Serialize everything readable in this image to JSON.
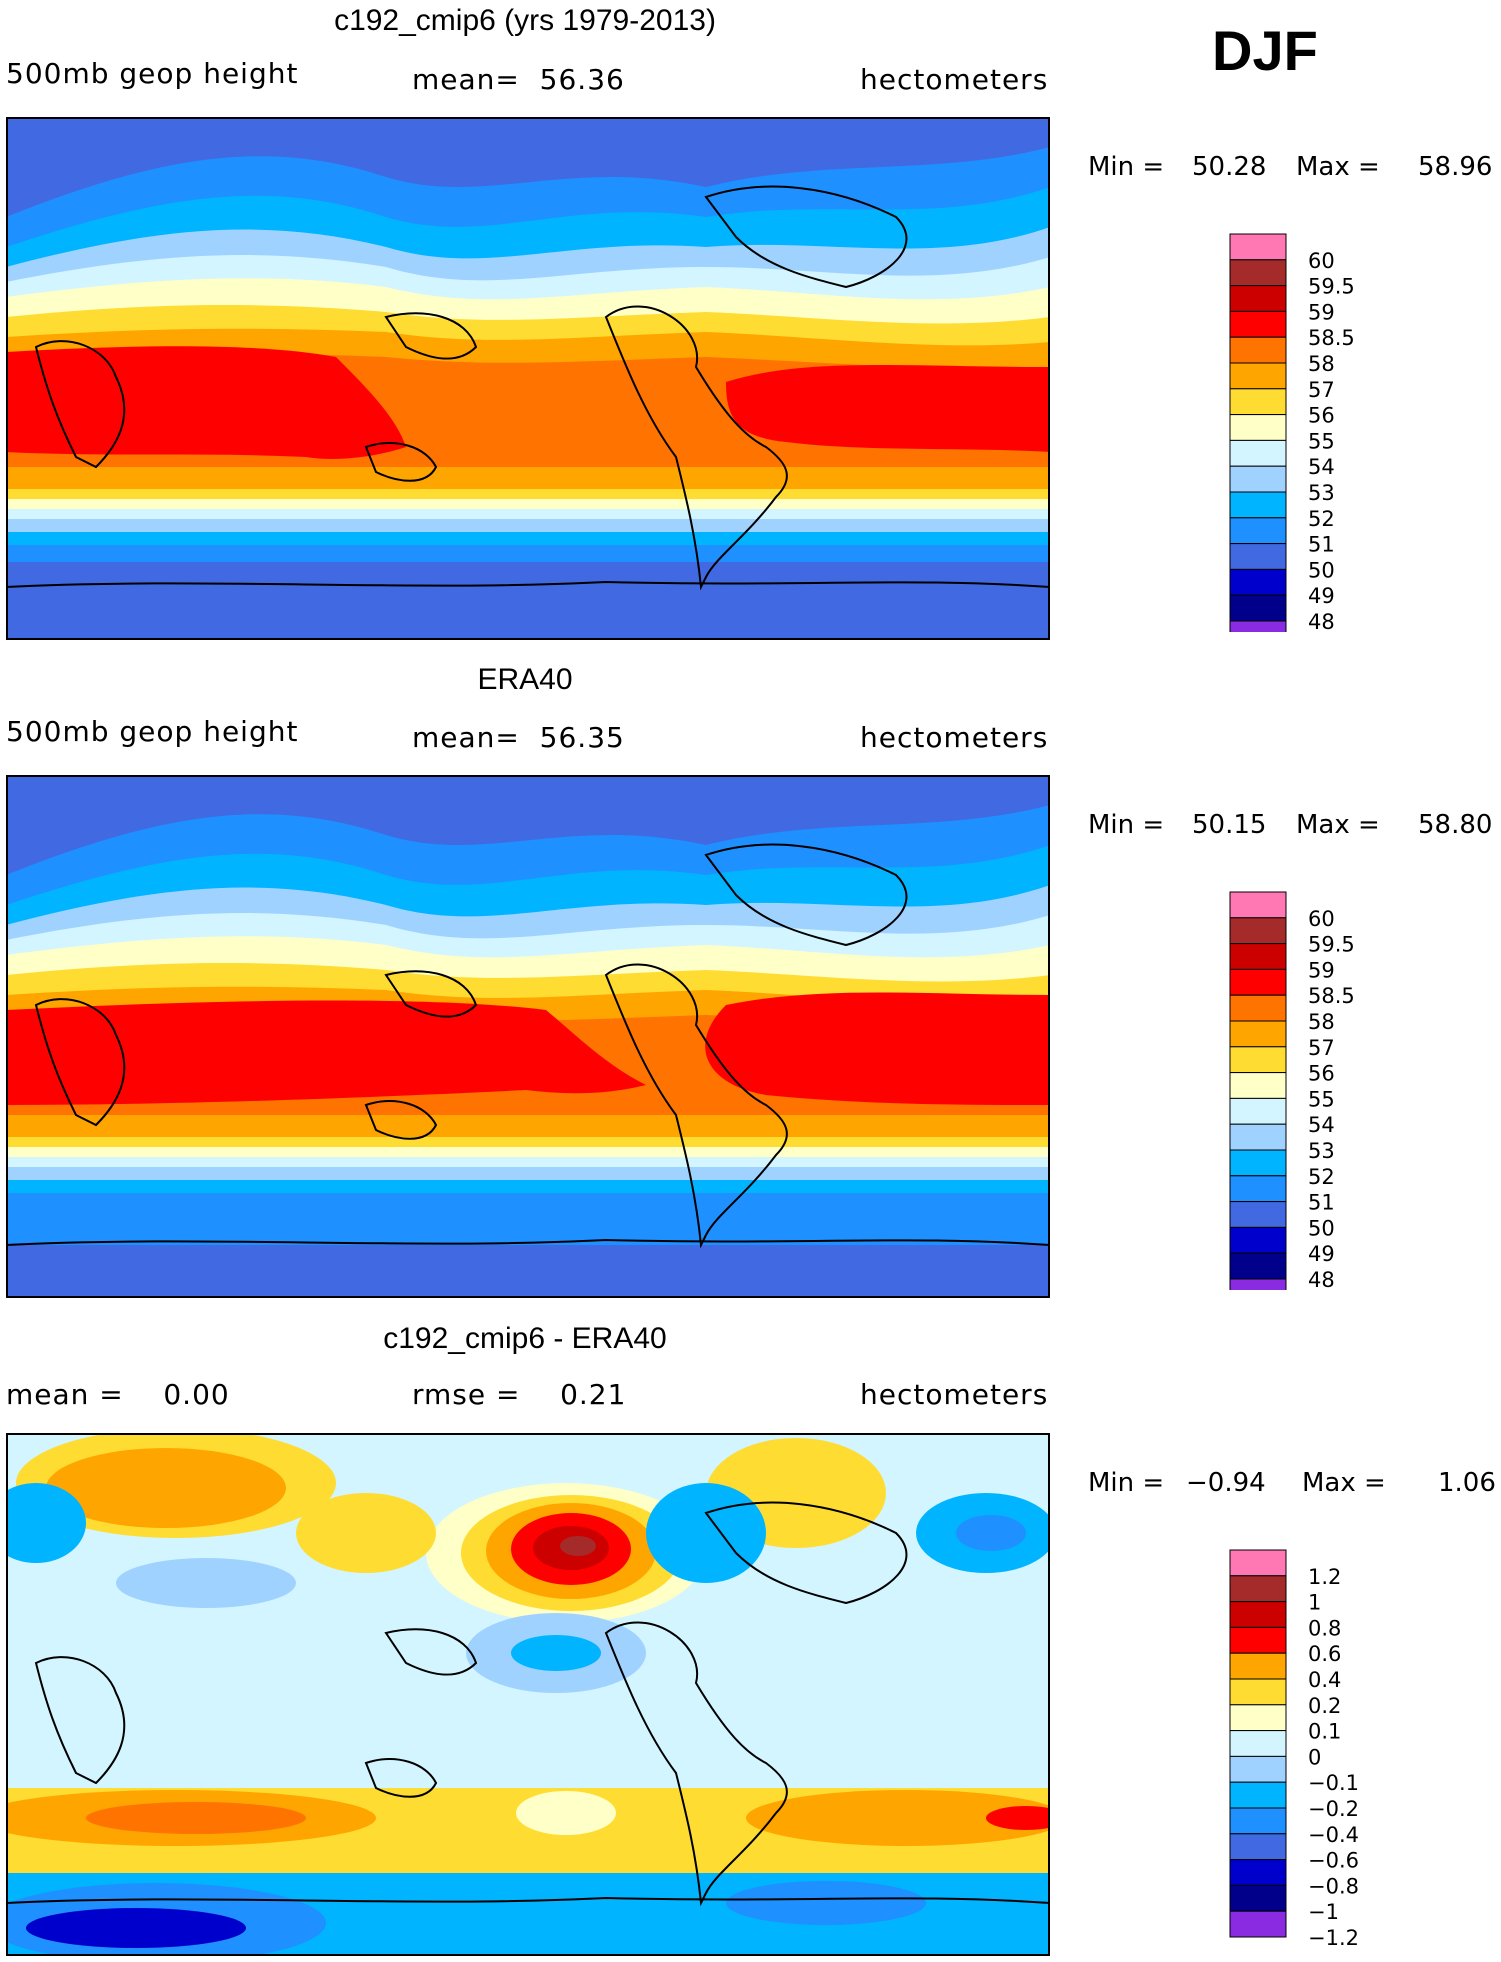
{
  "season": "DJF",
  "panels": [
    {
      "title": "c192_cmip6 (yrs 1979-2013)",
      "left_label": "500mb geop height",
      "center_label": "mean=  56.36",
      "units": "hectometers",
      "min_label": "Min =",
      "min_value": "50.28",
      "max_label": "Max =",
      "max_value": "58.96",
      "legend": {
        "colors": [
          "#ff78b4",
          "#a52a2a",
          "#cd0000",
          "#ff0000",
          "#ff7300",
          "#ffa500",
          "#ffdc32",
          "#ffffc8",
          "#d2f5ff",
          "#a0d2ff",
          "#00b4ff",
          "#1e90ff",
          "#4169e1",
          "#0000cd",
          "#00008b",
          "#8a2be2"
        ],
        "labels": [
          "60",
          "59.5",
          "59",
          "58.5",
          "58",
          "57",
          "56",
          "55",
          "54",
          "53",
          "52",
          "51",
          "50",
          "49",
          "48"
        ]
      }
    },
    {
      "title": "ERA40",
      "left_label": "500mb geop height",
      "center_label": "mean=  56.35",
      "units": "hectometers",
      "min_label": "Min =",
      "min_value": "50.15",
      "max_label": "Max =",
      "max_value": "58.80",
      "legend": {
        "colors": [
          "#ff78b4",
          "#a52a2a",
          "#cd0000",
          "#ff0000",
          "#ff7300",
          "#ffa500",
          "#ffdc32",
          "#ffffc8",
          "#d2f5ff",
          "#a0d2ff",
          "#00b4ff",
          "#1e90ff",
          "#4169e1",
          "#0000cd",
          "#00008b",
          "#8a2be2"
        ],
        "labels": [
          "60",
          "59.5",
          "59",
          "58.5",
          "58",
          "57",
          "56",
          "55",
          "54",
          "53",
          "52",
          "51",
          "50",
          "49",
          "48"
        ]
      }
    },
    {
      "title": "c192_cmip6 - ERA40",
      "left_label": "mean =    0.00",
      "center_label": "rmse =    0.21",
      "units": "hectometers",
      "min_label": "Min =",
      "min_value": "−0.94",
      "max_label": "Max =",
      "max_value": "1.06",
      "legend": {
        "colors": [
          "#ff78b4",
          "#a52a2a",
          "#cd0000",
          "#ff0000",
          "#ffa500",
          "#ffdc32",
          "#ffffc8",
          "#d2f5ff",
          "#a0d2ff",
          "#00b4ff",
          "#1e90ff",
          "#4169e1",
          "#0000cd",
          "#00008b",
          "#8a2be2"
        ],
        "labels": [
          "1.2",
          "1",
          "0.8",
          "0.6",
          "0.4",
          "0.2",
          "0.1",
          "0",
          "−0.1",
          "−0.2",
          "−0.4",
          "−0.6",
          "−0.8",
          "−1",
          "−1.2"
        ]
      }
    }
  ]
}
